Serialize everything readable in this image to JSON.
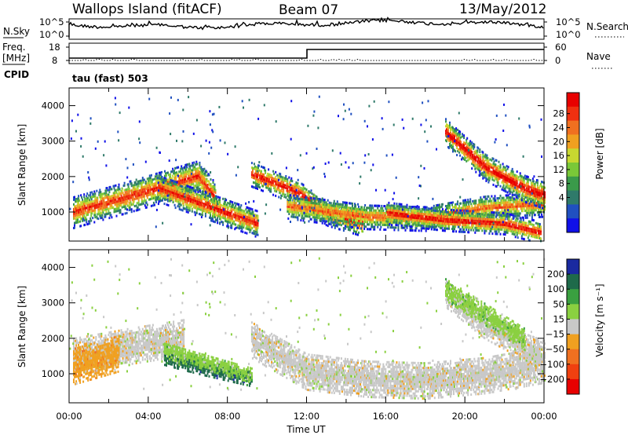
{
  "header": {
    "station": "Wallops Island (fitACF)",
    "beam": "Beam 07",
    "date": "13/May/2012"
  },
  "noise_panel": {
    "left_label": "N.Sky",
    "right_label": "N.Search",
    "left_ticks": [
      "10^5",
      "10^0"
    ],
    "right_ticks": [
      "10^5",
      "10^0"
    ]
  },
  "freq_panel": {
    "left_label_line1": "Freq.",
    "left_label_line2": "[MHz]",
    "right_label": "Nave",
    "left_ticks": [
      "18",
      "8"
    ],
    "right_ticks": [
      "60",
      "0"
    ]
  },
  "cpid": {
    "label": "CPID",
    "value": "tau (fast) 503"
  },
  "x_axis": {
    "label": "Time UT",
    "ticks": [
      "00:00",
      "04:00",
      "08:00",
      "12:00",
      "16:00",
      "20:00",
      "00:00"
    ]
  },
  "chart_data": [
    {
      "type": "heatmap",
      "name": "power",
      "ylabel": "Slant Range [km]",
      "yticks": [
        1000,
        2000,
        3000,
        4000
      ],
      "ylim": [
        180,
        4500
      ],
      "xlim": [
        0,
        24
      ],
      "colorbar_label": "Power [dB]",
      "colorbar_ticks": [
        "28",
        "24",
        "20",
        "16",
        "12",
        "8",
        "4"
      ],
      "colors": [
        "#1010e8",
        "#2050c0",
        "#2f7a6a",
        "#3a9a4a",
        "#7ac838",
        "#c8d830",
        "#f0a020",
        "#f07020",
        "#f03010",
        "#e80000"
      ],
      "bands": [
        {
          "t0": 0.2,
          "t1": 7.4,
          "r": [
            [
              0,
              1000
            ],
            [
              3.5,
              1550
            ],
            [
              6.5,
              2050
            ],
            [
              7.4,
              1400
            ]
          ],
          "w": 450,
          "core": 0.3
        },
        {
          "t0": 4.5,
          "t1": 9.5,
          "r": [
            [
              4.5,
              1700
            ],
            [
              6.5,
              1300
            ],
            [
              9.5,
              700
            ]
          ],
          "w": 380,
          "core": 0.35
        },
        {
          "t0": 9.2,
          "t1": 14.8,
          "r": [
            [
              9.2,
              2100
            ],
            [
              11.5,
              1600
            ],
            [
              13,
              1000
            ],
            [
              14.8,
              700
            ]
          ],
          "w": 350,
          "core": 0.4
        },
        {
          "t0": 11.0,
          "t1": 24.0,
          "r": [
            [
              11,
              1200
            ],
            [
              15,
              900
            ],
            [
              18,
              850
            ],
            [
              21,
              1150
            ],
            [
              24,
              1250
            ]
          ],
          "w": 350,
          "core": 0.2
        },
        {
          "t0": 16.0,
          "t1": 23.8,
          "r": [
            [
              16,
              1000
            ],
            [
              19,
              800
            ],
            [
              22,
              700
            ],
            [
              23.8,
              450
            ]
          ],
          "w": 300,
          "core": 0.4
        },
        {
          "t0": 19.0,
          "t1": 24.0,
          "r": [
            [
              19,
              3300
            ],
            [
              21,
              2300
            ],
            [
              23,
              1700
            ],
            [
              24,
              1500
            ]
          ],
          "w": 380,
          "core": 0.45
        }
      ]
    },
    {
      "type": "heatmap",
      "name": "velocity",
      "ylabel": "Slant Range [km]",
      "yticks": [
        1000,
        2000,
        3000,
        4000
      ],
      "ylim": [
        180,
        4500
      ],
      "xlim": [
        0,
        24
      ],
      "colorbar_label": "Velocity [m s⁻¹]",
      "colorbar_ticks": [
        "200",
        "100",
        "50",
        "15",
        "−15",
        "−50",
        "−100",
        "−200"
      ],
      "colors": [
        "#1a2aa0",
        "#1e6a4a",
        "#3aa040",
        "#8ad040",
        "#c8c8c8",
        "#f0a020",
        "#f07020",
        "#f04010",
        "#e80000"
      ],
      "bands": [
        {
          "t0": 0.2,
          "t1": 5.8,
          "r": [
            [
              0,
              1500
            ],
            [
              3,
              1800
            ],
            [
              5.8,
              2050
            ]
          ],
          "w": 500,
          "c": 4
        },
        {
          "t0": 0.2,
          "t1": 2.5,
          "r": [
            [
              0,
              1200
            ],
            [
              2.5,
              1600
            ]
          ],
          "w": 500,
          "c": 5
        },
        {
          "t0": 4.8,
          "t1": 9.2,
          "r": [
            [
              4.8,
              1500
            ],
            [
              6.5,
              1250
            ],
            [
              9.2,
              900
            ]
          ],
          "w": 220,
          "c": 1
        },
        {
          "t0": 4.8,
          "t1": 9.2,
          "r": [
            [
              4.8,
              1700
            ],
            [
              9.2,
              1000
            ]
          ],
          "w": 220,
          "c": 3
        },
        {
          "t0": 9.2,
          "t1": 24.0,
          "r": [
            [
              9.2,
              2000
            ],
            [
              12,
              1100
            ],
            [
              15,
              900
            ],
            [
              18,
              850
            ],
            [
              21,
              1000
            ],
            [
              24,
              1300
            ]
          ],
          "w": 520,
          "c": 4
        },
        {
          "t0": 19.0,
          "t1": 24.0,
          "r": [
            [
              19,
              3300
            ],
            [
              21,
              2400
            ],
            [
              23,
              1800
            ],
            [
              24,
              1600
            ]
          ],
          "w": 380,
          "c": 4
        },
        {
          "t0": 19.0,
          "t1": 23.0,
          "r": [
            [
              19,
              3400
            ],
            [
              23,
              2000
            ]
          ],
          "w": 300,
          "c": 3
        }
      ]
    }
  ]
}
